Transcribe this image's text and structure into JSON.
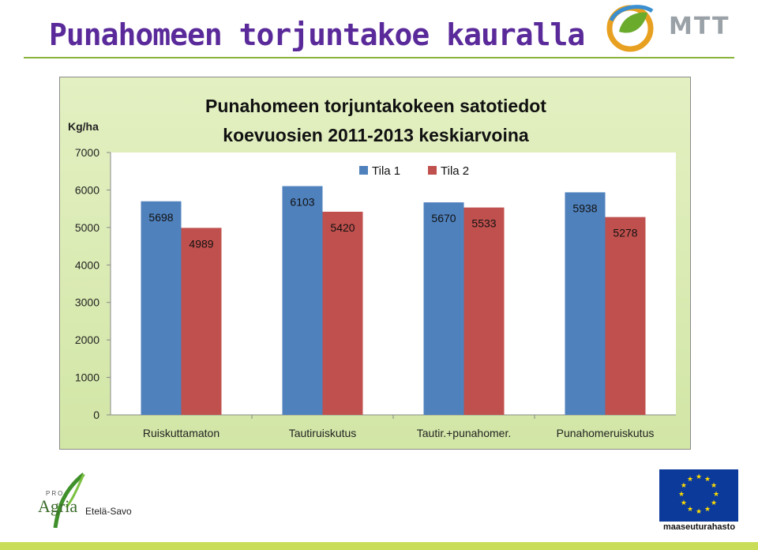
{
  "slide": {
    "title": "Punahomeen torjuntakoe kauralla",
    "logo_text": "MTT",
    "footer_logo_pro": "PRO",
    "footer_logo_agria": "Agria",
    "footer_logo_region": "Etelä-Savo",
    "footer_logo_eu": "maaseuturahasto"
  },
  "colors": {
    "title": "#5a2a9a",
    "tila1": "#4f81bd",
    "tila2": "#c0504d",
    "plot_background": "#ffffff",
    "chart_background": "#d9eab1",
    "accent_green": "#8ab33a"
  },
  "chart_data": {
    "type": "bar",
    "title_line1": "Punahomeen torjuntakokeen satotiedot",
    "title_line2": "koevuosien 2011-2013 keskiarvoina",
    "ylabel": "Kg/ha",
    "ylim": [
      0,
      7000
    ],
    "yticks": [
      0,
      1000,
      2000,
      3000,
      4000,
      5000,
      6000,
      7000
    ],
    "categories": [
      "Ruiskuttamaton",
      "Tautiruiskutus",
      "Tautir.+punahomer.",
      "Punahomeruiskutus"
    ],
    "series": [
      {
        "name": "Tila 1",
        "values": [
          5698,
          6103,
          5670,
          5938
        ]
      },
      {
        "name": "Tila 2",
        "values": [
          4989,
          5420,
          5533,
          5278
        ]
      }
    ],
    "legend_position": "top-center",
    "grid": false
  }
}
